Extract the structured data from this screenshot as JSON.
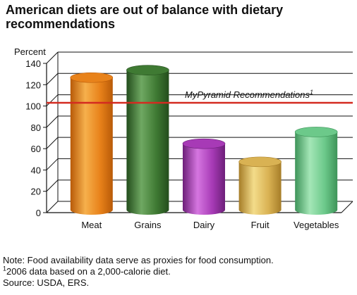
{
  "title": "American diets are out of balance with dietary recommendations",
  "chart_data": {
    "type": "bar",
    "title": "American diets are out of balance with dietary recommendations",
    "ylabel": "Percent",
    "xlabel": "",
    "categories": [
      "Meat",
      "Grains",
      "Dairy",
      "Fruit",
      "Vegetables"
    ],
    "values": [
      122,
      129,
      60,
      43,
      71
    ],
    "ylim": [
      0,
      140
    ],
    "yticks": [
      0,
      20,
      40,
      60,
      80,
      100,
      120,
      140
    ],
    "grid": true,
    "reference_line": {
      "value": 103,
      "label": "MyPyramid Recommendations",
      "footnote_mark": "1",
      "color": "#d42b20"
    },
    "bar_colors": [
      {
        "light": "#f6b04c",
        "mid": "#e8821a",
        "dark": "#b85a08"
      },
      {
        "light": "#6fa862",
        "mid": "#3f7a33",
        "dark": "#234d1c"
      },
      {
        "light": "#d576e0",
        "mid": "#a73ab6",
        "dark": "#6d1f79"
      },
      {
        "light": "#f3dc8a",
        "mid": "#d9b253",
        "dark": "#a67d28"
      },
      {
        "light": "#a4e6b7",
        "mid": "#6cc98a",
        "dark": "#3e9459"
      }
    ]
  },
  "notes": {
    "note": "Note: Food availability data serve as proxies for food consumption.",
    "footnote_mark": "1",
    "footnote": "2006 data based on a 2,000-calorie diet.",
    "source": "Source: USDA, ERS."
  }
}
